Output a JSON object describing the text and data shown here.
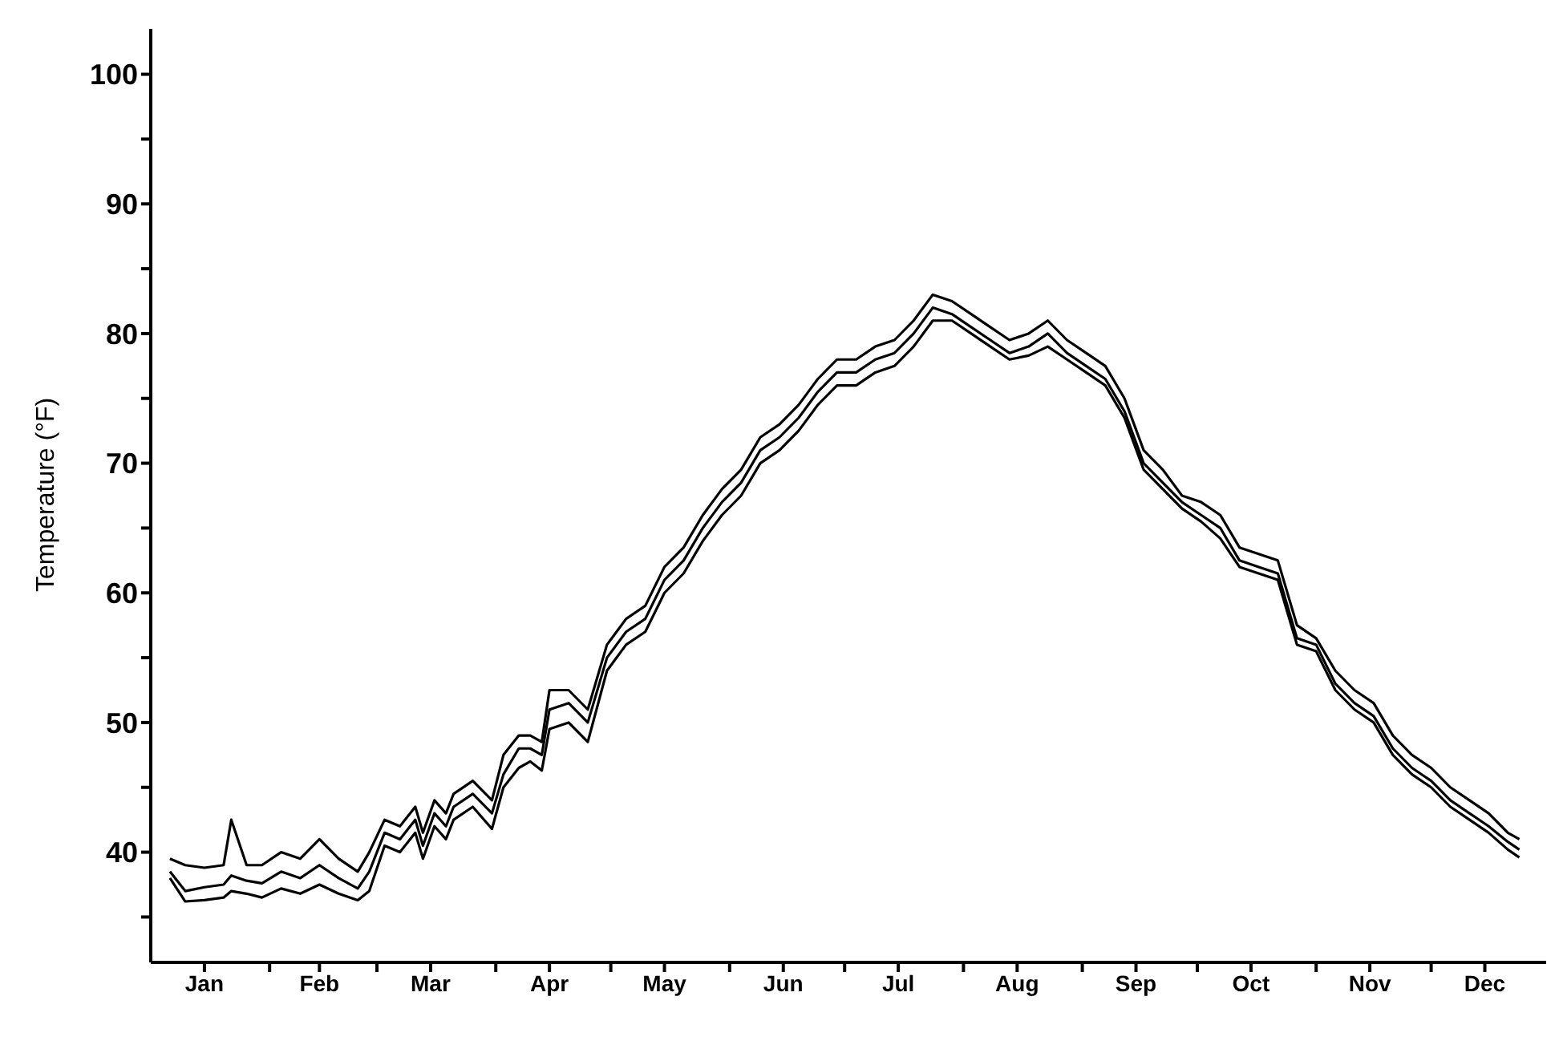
{
  "chart_data": {
    "type": "line",
    "ylabel": "Temperature (°F)",
    "x": [
      "--01-06",
      "--01-10",
      "--01-15",
      "--01-20",
      "--01-22",
      "--01-26",
      "--01-30",
      "--02-04",
      "--02-09",
      "--02-14",
      "--02-19",
      "--02-24",
      "--02-27",
      "--03-03",
      "--03-07",
      "--03-11",
      "--03-13",
      "--03-16",
      "--03-19",
      "--03-21",
      "--03-26",
      "--03-31",
      "--04-03",
      "--04-07",
      "--04-10",
      "--04-13",
      "--04-15",
      "--04-20",
      "--04-25",
      "--04-30",
      "--05-05",
      "--05-10",
      "--05-15",
      "--05-20",
      "--05-25",
      "--05-30",
      "--06-04",
      "--06-09",
      "--06-14",
      "--06-19",
      "--06-24",
      "--06-29",
      "--07-04",
      "--07-09",
      "--07-14",
      "--07-19",
      "--07-24",
      "--07-29",
      "--08-03",
      "--08-08",
      "--08-13",
      "--08-18",
      "--08-23",
      "--08-28",
      "--09-02",
      "--09-07",
      "--09-12",
      "--09-17",
      "--09-22",
      "--09-27",
      "--10-02",
      "--10-07",
      "--10-12",
      "--10-17",
      "--10-22",
      "--10-27",
      "--11-01",
      "--11-06",
      "--11-11",
      "--11-16",
      "--11-21",
      "--11-26",
      "--12-01",
      "--12-06",
      "--12-11",
      "--12-16",
      "--12-21",
      "--12-24"
    ],
    "series": [
      {
        "color": "#000000",
        "values": [
          39.5,
          39,
          38.8,
          39,
          42.5,
          39,
          39,
          40,
          39.5,
          41,
          39.5,
          38.5,
          40,
          42.5,
          42,
          43.5,
          41.5,
          44,
          43,
          44.5,
          45.5,
          44,
          47.5,
          49,
          49,
          48.5,
          52.5,
          52.5,
          51,
          56,
          58,
          59,
          62,
          63.5,
          66,
          68,
          69.5,
          72,
          73,
          74.5,
          76.5,
          78,
          78,
          79,
          79.5,
          81,
          83,
          82.5,
          81.5,
          80.5,
          79.5,
          80,
          81,
          79.5,
          78.5,
          77.5,
          75,
          71,
          69.5,
          67.5,
          67,
          66,
          63.5,
          63,
          62.5,
          57.5,
          56.5,
          54,
          52.5,
          51.5,
          49,
          47.5,
          46.5,
          45,
          44,
          43,
          41.5,
          41
        ]
      },
      {
        "color": "#000000",
        "values": [
          38.5,
          37,
          37.3,
          37.5,
          38.2,
          37.8,
          37.6,
          38.5,
          38,
          39,
          38,
          37.2,
          38.5,
          41.5,
          41,
          42.5,
          40.5,
          43,
          42,
          43.5,
          44.5,
          43,
          46,
          48,
          48,
          47.5,
          51,
          51.5,
          50,
          55,
          57,
          58,
          61,
          62.5,
          65,
          67,
          68.5,
          71,
          72,
          73.5,
          75.5,
          77,
          77,
          78,
          78.5,
          80,
          82,
          81.5,
          80.5,
          79.5,
          78.5,
          79,
          80,
          78.5,
          77.5,
          76.5,
          74,
          70,
          68.5,
          67,
          66,
          65,
          62.5,
          62,
          61.5,
          56.5,
          56,
          53,
          51.5,
          50.5,
          48,
          46.5,
          45.5,
          44,
          43,
          42,
          40.8,
          40.2
        ]
      },
      {
        "color": "#000000",
        "values": [
          38,
          36.2,
          36.3,
          36.5,
          37,
          36.8,
          36.5,
          37.2,
          36.8,
          37.5,
          36.8,
          36.3,
          37,
          40.5,
          40,
          41.5,
          39.5,
          42,
          41,
          42.5,
          43.5,
          41.8,
          45,
          46.5,
          47,
          46.3,
          49.5,
          50,
          48.5,
          54,
          56,
          57,
          60,
          61.5,
          64,
          66,
          67.5,
          70,
          71,
          72.5,
          74.5,
          76,
          76,
          77,
          77.5,
          79,
          81,
          81,
          80,
          79,
          78,
          78.3,
          79,
          78,
          77,
          76,
          73.5,
          69.5,
          68,
          66.5,
          65.5,
          64.2,
          62,
          61.5,
          61,
          56,
          55.5,
          52.5,
          51,
          50,
          47.5,
          46,
          45,
          43.5,
          42.5,
          41.5,
          40.2,
          39.6
        ]
      }
    ],
    "xlim": [
      "--01-01",
      "--12-31"
    ],
    "xticks": [
      {
        "value": "--01-15",
        "label": "Jan"
      },
      {
        "value": "--02-01",
        "label": null
      },
      {
        "value": "--02-14",
        "label": "Feb"
      },
      {
        "value": "--03-01",
        "label": null
      },
      {
        "value": "--03-15",
        "label": "Mar"
      },
      {
        "value": "--04-01",
        "label": null
      },
      {
        "value": "--04-15",
        "label": "Apr"
      },
      {
        "value": "--05-01",
        "label": null
      },
      {
        "value": "--05-15",
        "label": "May"
      },
      {
        "value": "--06-01",
        "label": null
      },
      {
        "value": "--06-15",
        "label": "Jun"
      },
      {
        "value": "--07-01",
        "label": null
      },
      {
        "value": "--07-15",
        "label": "Jul"
      },
      {
        "value": "--08-01",
        "label": null
      },
      {
        "value": "--08-15",
        "label": "Aug"
      },
      {
        "value": "--09-01",
        "label": null
      },
      {
        "value": "--09-15",
        "label": "Sep"
      },
      {
        "value": "--10-01",
        "label": null
      },
      {
        "value": "--10-15",
        "label": "Oct"
      },
      {
        "value": "--11-01",
        "label": null
      },
      {
        "value": "--11-15",
        "label": "Nov"
      },
      {
        "value": "--12-01",
        "label": null
      },
      {
        "value": "--12-15",
        "label": "Dec"
      }
    ],
    "ylim": [
      31.5,
      103.5
    ],
    "yticks": [
      {
        "value": 35,
        "label": null
      },
      40,
      {
        "value": 45,
        "label": null
      },
      50,
      {
        "value": 55,
        "label": null
      },
      60,
      {
        "value": 65,
        "label": null
      },
      70,
      {
        "value": 75,
        "label": null
      },
      80,
      {
        "value": 85,
        "label": null
      },
      90,
      {
        "value": 95,
        "label": null
      },
      100
    ],
    "grid": false,
    "marker": "none",
    "line_style": "solid"
  }
}
